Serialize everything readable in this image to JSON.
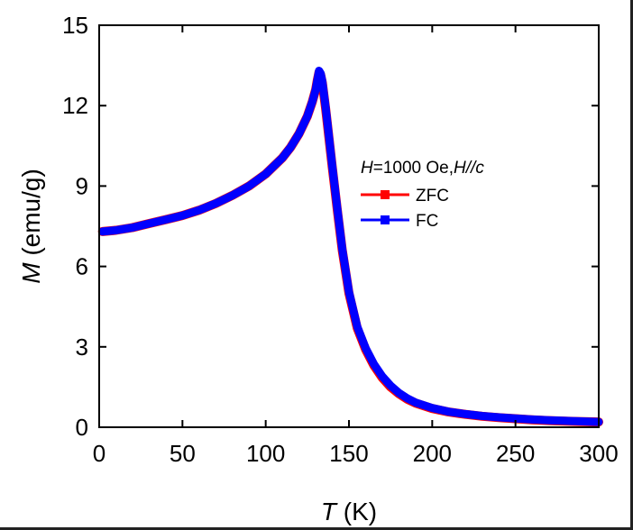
{
  "chart_data": {
    "type": "line",
    "title": "",
    "xlabel_var": "T",
    "xlabel_unit": " (K)",
    "ylabel_var": "M",
    "ylabel_unit": " (emu/g)",
    "xlim": [
      0,
      300
    ],
    "ylim": [
      0,
      15
    ],
    "xticks": [
      0,
      50,
      100,
      150,
      200,
      250,
      300
    ],
    "yticks": [
      0,
      3,
      6,
      9,
      12,
      15
    ],
    "xtick_labels": [
      "0",
      "50",
      "100",
      "150",
      "200",
      "250",
      "300"
    ],
    "ytick_labels": [
      "0",
      "3",
      "6",
      "9",
      "12",
      "15"
    ],
    "grid": false,
    "legend_position": "right",
    "legend_title": {
      "h_var": "H",
      "h_value": "=1000 Oe,",
      "dir_var": "H",
      "dir_sep": "//",
      "dir_axis": "c"
    },
    "series": [
      {
        "name": "ZFC",
        "color": "#ff0000",
        "marker": "square",
        "x": [
          2,
          10,
          20,
          30,
          40,
          50,
          60,
          70,
          80,
          90,
          100,
          110,
          115,
          120,
          125,
          128,
          130,
          131,
          132,
          133,
          134,
          136,
          138,
          140,
          143,
          146,
          150,
          155,
          160,
          165,
          170,
          175,
          180,
          185,
          190,
          200,
          210,
          220,
          230,
          240,
          250,
          260,
          270,
          280,
          290,
          300
        ],
        "y": [
          7.3,
          7.35,
          7.45,
          7.6,
          7.75,
          7.9,
          8.1,
          8.35,
          8.65,
          9.0,
          9.45,
          10.05,
          10.45,
          10.95,
          11.6,
          12.15,
          12.6,
          12.95,
          13.25,
          13.15,
          12.85,
          11.9,
          10.8,
          9.7,
          8.1,
          6.6,
          5.0,
          3.7,
          2.9,
          2.3,
          1.85,
          1.5,
          1.25,
          1.05,
          0.9,
          0.7,
          0.57,
          0.48,
          0.41,
          0.36,
          0.32,
          0.28,
          0.25,
          0.23,
          0.21,
          0.2
        ]
      },
      {
        "name": "FC",
        "color": "#0000ff",
        "marker": "square",
        "x": [
          2,
          10,
          20,
          30,
          40,
          50,
          60,
          70,
          80,
          90,
          100,
          110,
          115,
          120,
          125,
          128,
          130,
          131,
          132,
          133,
          134,
          136,
          138,
          140,
          143,
          146,
          150,
          155,
          160,
          165,
          170,
          175,
          180,
          185,
          190,
          200,
          210,
          220,
          230,
          240,
          250,
          260,
          270,
          280,
          290,
          300
        ],
        "y": [
          7.3,
          7.35,
          7.45,
          7.6,
          7.75,
          7.9,
          8.1,
          8.35,
          8.65,
          9.0,
          9.45,
          10.05,
          10.45,
          10.95,
          11.6,
          12.15,
          12.6,
          12.95,
          13.3,
          13.2,
          12.9,
          11.95,
          10.85,
          9.75,
          8.15,
          6.65,
          5.05,
          3.75,
          2.95,
          2.35,
          1.9,
          1.55,
          1.28,
          1.08,
          0.92,
          0.72,
          0.58,
          0.49,
          0.42,
          0.37,
          0.33,
          0.29,
          0.26,
          0.24,
          0.22,
          0.2
        ]
      }
    ]
  }
}
